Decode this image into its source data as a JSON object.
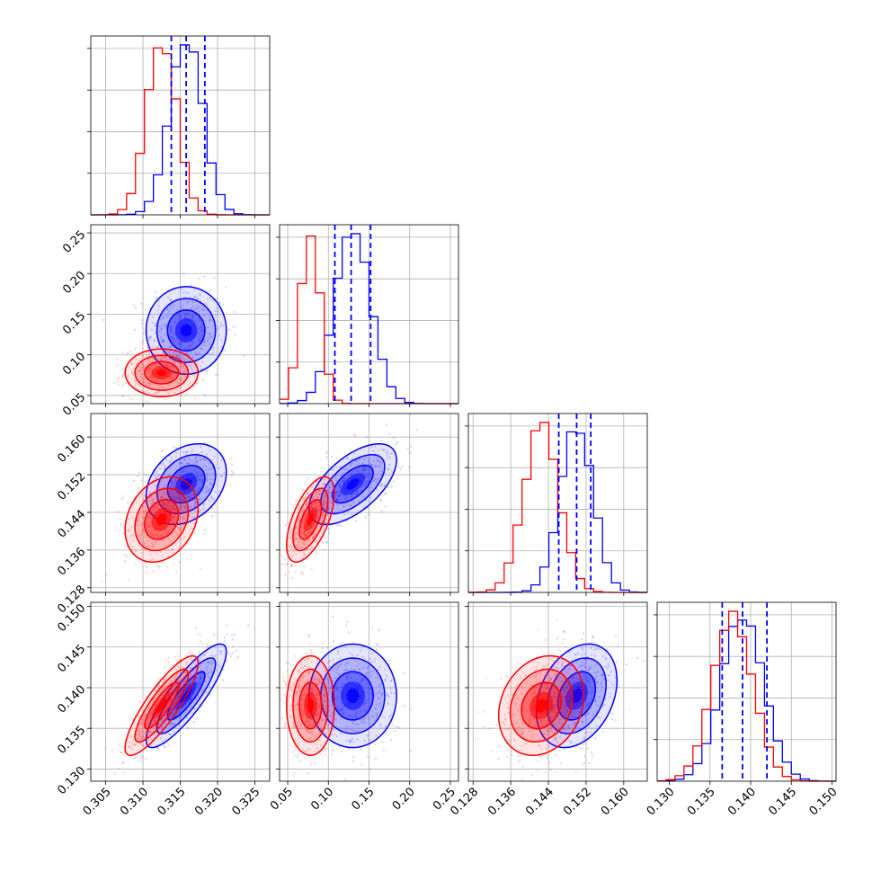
{
  "chart_data": {
    "type": "corner",
    "colors": {
      "series_a": "#0000ff",
      "series_b": "#ff0000"
    },
    "grid": true,
    "params": [
      {
        "range": [
          0.303,
          0.327
        ],
        "ticks": [
          0.305,
          0.31,
          0.315,
          0.32,
          0.325
        ],
        "tick_labels": [
          "0.305",
          "0.310",
          "0.315",
          "0.320",
          "0.325"
        ]
      },
      {
        "range": [
          0.04,
          0.26
        ],
        "ticks": [
          0.05,
          0.1,
          0.15,
          0.2,
          0.25
        ],
        "tick_labels": [
          "0.05",
          "0.10",
          "0.15",
          "0.20",
          "0.25"
        ]
      },
      {
        "range": [
          0.127,
          0.165
        ],
        "ticks": [
          0.128,
          0.136,
          0.144,
          0.152,
          0.16
        ],
        "tick_labels": [
          "0.128",
          "0.136",
          "0.144",
          "0.152",
          "0.160"
        ]
      },
      {
        "range": [
          0.1285,
          0.1505
        ],
        "ticks": [
          0.13,
          0.135,
          0.14,
          0.145,
          0.15
        ],
        "tick_labels": [
          "0.130",
          "0.135",
          "0.140",
          "0.145",
          "0.150"
        ]
      }
    ],
    "series": [
      {
        "color": "#0000ff",
        "mean": [
          0.3158,
          0.13,
          0.15,
          0.139
        ],
        "sd": [
          0.0022,
          0.022,
          0.0035,
          0.0026
        ],
        "quantiles": [
          [
            0.3138,
            0.3158,
            0.3183
          ],
          [
            0.108,
            0.128,
            0.152
          ],
          [
            0.1462,
            0.15,
            0.153
          ],
          [
            0.1365,
            0.139,
            0.142
          ]
        ],
        "correlation": [
          [
            1.0,
            0.0,
            0.3,
            0.85
          ],
          [
            0.0,
            1.0,
            0.6,
            0.0
          ],
          [
            0.3,
            0.6,
            1.0,
            0.3
          ],
          [
            0.85,
            0.0,
            0.3,
            1.0
          ]
        ]
      },
      {
        "color": "#ff0000",
        "mean": [
          0.3125,
          0.078,
          0.1425,
          0.1378
        ],
        "sd": [
          0.002,
          0.012,
          0.0037,
          0.0025
        ],
        "quantiles": [],
        "correlation": [
          [
            1.0,
            0.0,
            0.25,
            0.85
          ],
          [
            0.0,
            1.0,
            0.6,
            0.0
          ],
          [
            0.25,
            0.6,
            1.0,
            0.2
          ],
          [
            0.85,
            0.0,
            0.2,
            1.0
          ]
        ]
      }
    ]
  }
}
